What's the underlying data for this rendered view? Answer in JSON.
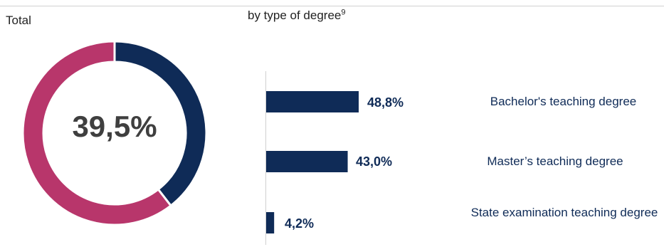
{
  "panels": {
    "total_title": "Total",
    "by_type_title": "by type of degree",
    "by_type_footnote": "9"
  },
  "colors": {
    "navy": "#0f2b57",
    "magenta": "#b8366b",
    "axis": "#d0d0d0"
  },
  "chart_data": [
    {
      "type": "pie",
      "variant": "donut",
      "title": "Total",
      "center_label": "39,5%",
      "slices": [
        {
          "value": 39.5,
          "color": "#0f2b57"
        },
        {
          "value": 60.5,
          "color": "#b8366b"
        }
      ]
    },
    {
      "type": "bar",
      "orientation": "horizontal",
      "title": "by type of degree",
      "footnote": "9",
      "categories": [
        "Bachelor's teaching degree",
        "Master’s teaching degree",
        "State examination teaching degree"
      ],
      "values": [
        48.8,
        43.0,
        4.2
      ],
      "value_labels": [
        "48,8%",
        "43,0%",
        "4,2%"
      ],
      "color": "#0f2b57",
      "xlim": [
        0,
        100
      ],
      "grid": false
    }
  ]
}
